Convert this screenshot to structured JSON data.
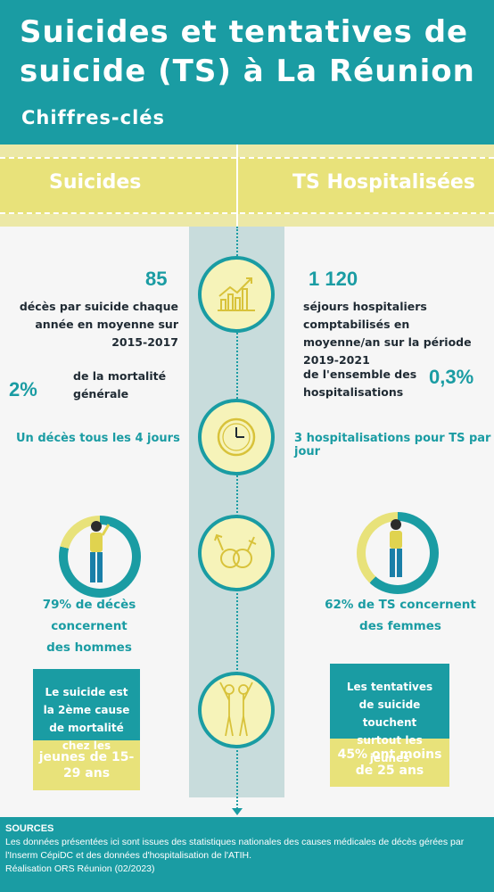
{
  "header": {
    "title": "Suicides et tentatives de suicide (TS) à La Réunion",
    "subtitle": "Chiffres-clés"
  },
  "columns": {
    "left": "Suicides",
    "right": "TS Hospitalisées"
  },
  "icons": [
    "chart-growth-icon",
    "clock-icon",
    "gender-icon",
    "youth-icon"
  ],
  "suicides": {
    "count": "85",
    "count_text": "décès par suicide chaque année en moyenne sur 2015-2017",
    "share": "2%",
    "share_text": "de la mortalité générale",
    "frequency": "Un décès tous les 4 jours",
    "gender_line1": "79% de décès concernent",
    "gender_line2": "des hommes",
    "gender_percent": 79,
    "card_text": "Le suicide est la 2ème cause de mortalité chez les",
    "card_highlight": "jeunes de 15-29 ans"
  },
  "ts": {
    "count": "1 120",
    "count_text": "séjours hospitaliers comptabilisés en moyenne/an sur la période 2019-2021",
    "share": "0,3%",
    "share_text": "de l'ensemble des hospitalisations",
    "frequency": "3 hospitalisations pour TS par jour",
    "gender_line1": "62% de TS  concernent",
    "gender_line2": "des femmes",
    "gender_percent": 62,
    "card_text": "Les tentatives de suicide touchent surtout les jeunes",
    "card_highlight": "45% ont moins de 25 ans"
  },
  "colors": {
    "teal": "#1a9ca3",
    "yellow": "#e8e27a",
    "pale_yellow": "#f6f3b9"
  },
  "sources": {
    "title": "SOURCES",
    "text": "Les données présentées ici sont issues des statistiques nationales des causes médicales de décès gérées par l'Inserm CépiDC et des données d'hospitalisation de l'ATIH.",
    "credit": "Réalisation ORS Réunion (02/2023)"
  }
}
